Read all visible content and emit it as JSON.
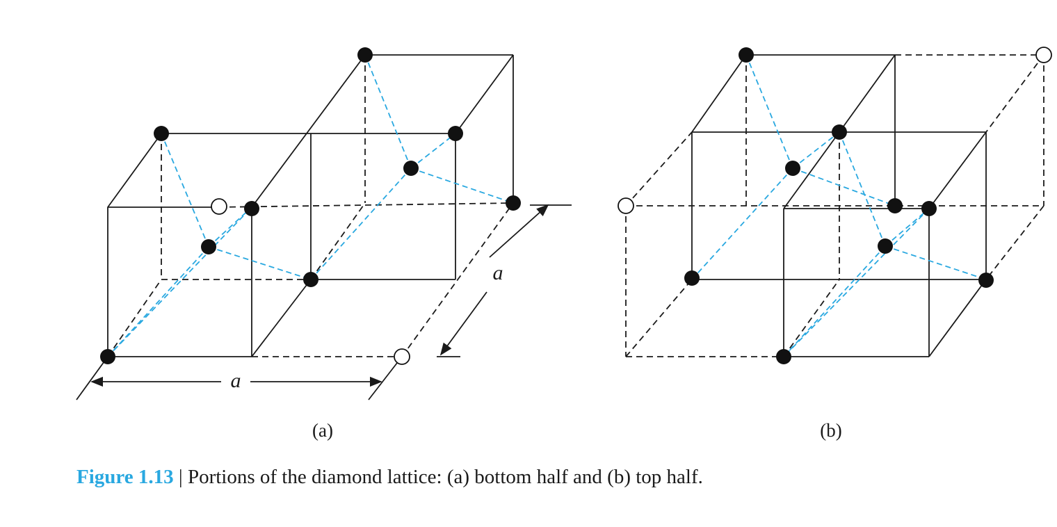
{
  "figure": {
    "panel_a_label": "(a)",
    "panel_b_label": "(b)",
    "dimension_label": "a",
    "colors": {
      "lines": "#1a1a1a",
      "bonds": "#29a8e0",
      "caption_number": "#29a8e0"
    }
  },
  "caption": {
    "number": "Figure 1.13",
    "separator": "|",
    "text": "Portions of the diamond lattice: (a) bottom half and (b) top half."
  }
}
